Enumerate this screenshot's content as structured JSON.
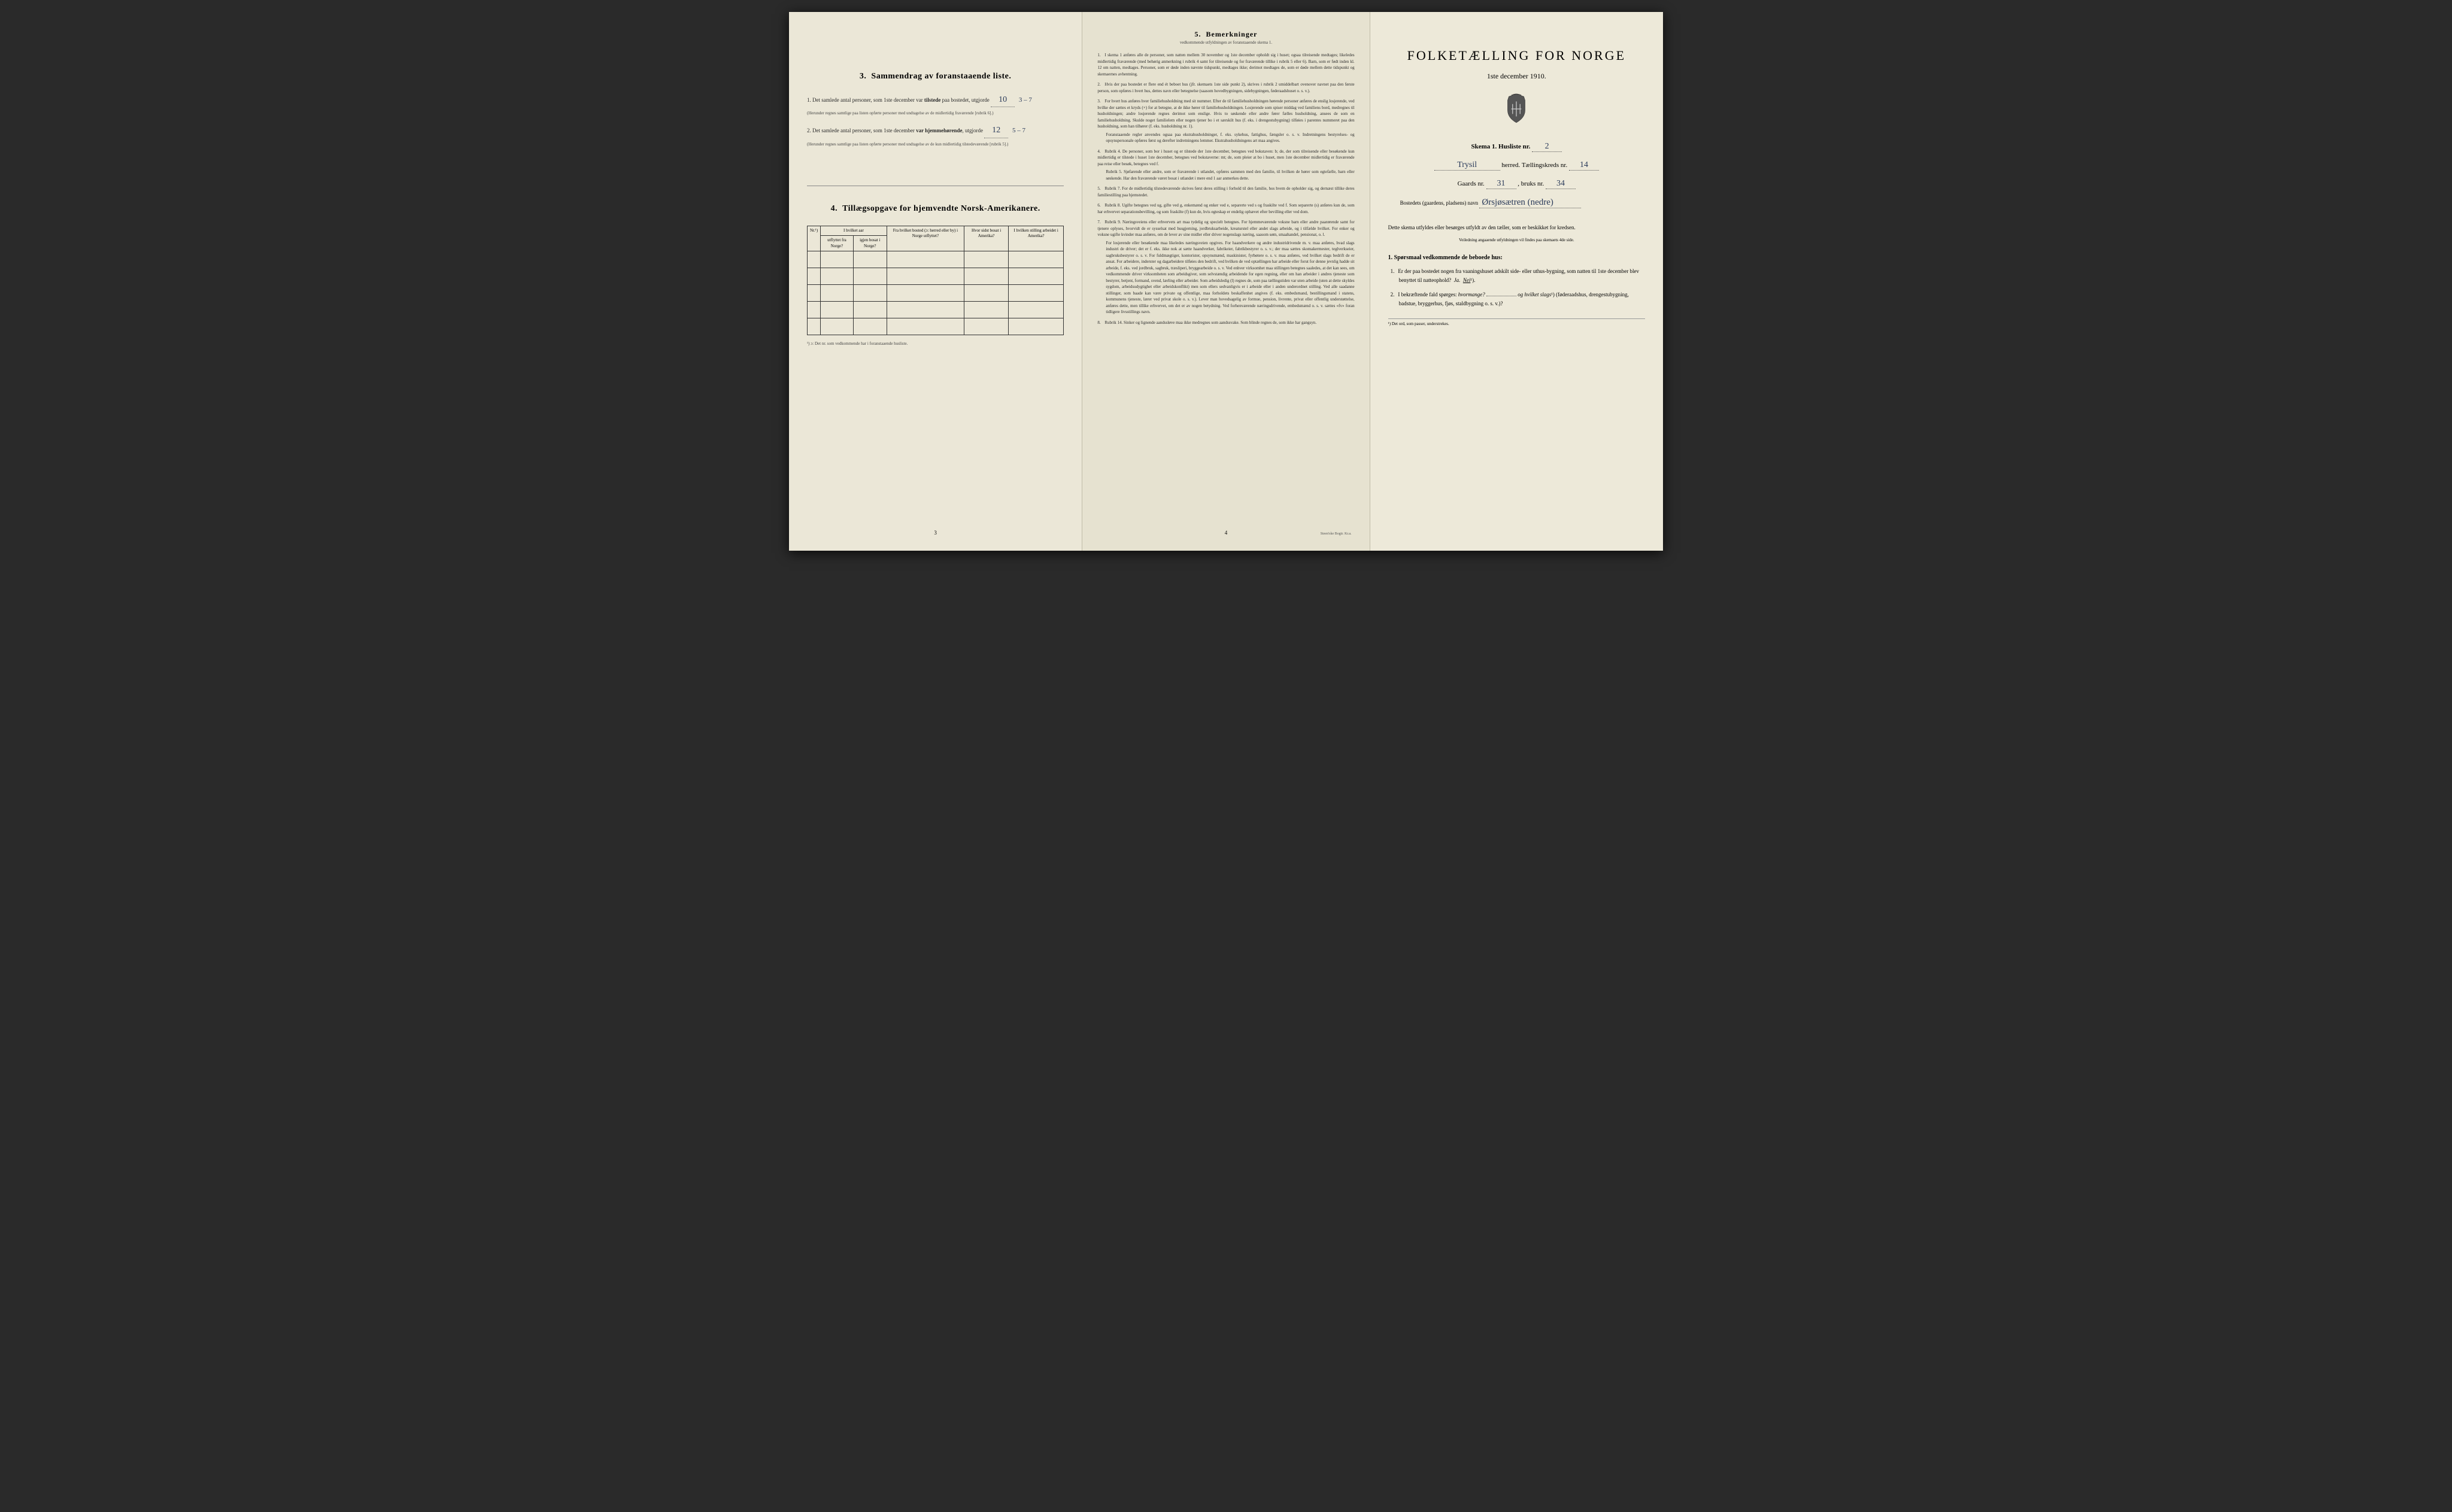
{
  "leftPage": {
    "section3": {
      "heading_num": "3.",
      "heading": "Sammendrag av foranstaaende liste.",
      "item1_prefix": "1. Det samlede antal personer, som 1ste december var",
      "item1_bold": "tilstede",
      "item1_suffix": "paa bostedet, utgjorde",
      "item1_fill": "10",
      "item1_hand": "3 – 7",
      "item1_note": "(Herunder regnes samtlige paa listen opførte personer med undtagelse av de midlertidig fraværende [rubrik 6].)",
      "item2_prefix": "2. Det samlede antal personer, som 1ste december",
      "item2_bold": "var hjemmehørende",
      "item2_suffix": ", utgjorde",
      "item2_fill": "12",
      "item2_hand": "5 – 7",
      "item2_note": "(Herunder regnes samtlige paa listen opførte personer med undtagelse av de kun midlertidig tilstedeværende [rubrik 5].)"
    },
    "section4": {
      "heading_num": "4.",
      "heading": "Tillægsopgave for hjemvendte Norsk-Amerikanere.",
      "col_nr": "Nr.¹)",
      "col_group": "I hvilket aar",
      "col_utflyttet": "utflyttet fra Norge?",
      "col_igjen": "igjen bosat i Norge?",
      "col_bosted": "Fra hvilket bosted (ɔ: herred eller by) i Norge utflyttet?",
      "col_sidst": "Hvor sidst bosat i Amerika?",
      "col_stilling": "I hvilken stilling arbeidet i Amerika?",
      "footnote": "¹) ɔ: Det nr. som vedkommende har i foranstaaende husliste."
    },
    "page_num": "3"
  },
  "centerPage": {
    "heading_num": "5.",
    "heading": "Bemerkninger",
    "subheading": "vedkommende utfyldningen av foranstaaende skema 1.",
    "remarks": [
      {
        "n": "1.",
        "t": "I skema 1 anføres alle de personer, som natten mellem 30 november og 1ste december opholdt sig i huset; ogsaa tilreisende medtages; likeledes midlertidig fraværende (med behørig anmerkning i rubrik 4 samt for tilreisende og for fraværende tillike i rubrik 5 eller 6). Barn, som er født inden kl. 12 om natten, medtages. Personer, som er døde inden nævnte tidspunkt, medtages ikke; derimot medtages de, som er døde mellem dette tidspunkt og skemaernes avhentning."
      },
      {
        "n": "2.",
        "t": "Hvis der paa bostedet er flere end ét beboet hus (jfr. skemaets 1ste side punkt 2), skrives i rubrik 2 umiddelbart ovenover navnet paa den første person, som opføres i hvert hus, dettes navn eller betegnelse (saasom hovedbygningen, sidebygningen, føderaadshuset o. s. v.)."
      },
      {
        "n": "3.",
        "t": "For hvert hus anføres hver familiehusholdning med sit nummer. Efter de til familiehusholdningen hørende personer anføres de enslig losjerende, ved hvilke der sættes et kryds (×) for at betegne, at de ikke hører til familiehusholdningen. Losjerende som spiser middag ved familiens bord, medregnes til husholdningen; andre losjerende regnes derimot som enslige. Hvis to søskende eller andre fører fælles husholdning, ansees de som en familiehusholdning. Skulde noget familielem eller nogen tjener bo i et særskilt hus (f. eks. i drengestubygning) tilføies i parentes nummeret paa den husholdning, som han tilhører (f. eks. husholdning nr. 1).",
        "extra": "Foranstaaende regler anvendes ogsaa paa ekstrahusholdninger, f. eks. sykehus, fattighus, fængsler o. s. v. Indretningens bestyrelses- og opsynspersonale opføres først og derefter indretningens lemmer. Ekstrahusholdningens art maa angives."
      },
      {
        "n": "4.",
        "t": "Rubrik 4. De personer, som bor i huset og er tilstede der 1ste december, betegnes ved bokstaven: b; de, der som tilreisende eller besøkende kun midlertidig er tilstede i huset 1ste december, betegnes ved bokstaverne: mt; de, som pleier at bo i huset, men 1ste december midlertidig er fraværende paa reise eller besøk, betegnes ved f.",
        "extra": "Rubrik 5. Sjøfarende eller andre, som er fraværende i utlandet, opføres sammen med den familie, til hvilken de hører som egtefælle, barn eller søskende. Har den fraværende været bosat i utlandet i mere end 1 aar anmerkes dette."
      },
      {
        "n": "5.",
        "t": "Rubrik 7. For de midlertidig tilstedeværende skrives først deres stilling i forhold til den familie, hos hvem de opholder sig, og dernæst tillike deres familiestilling paa hjemstedet."
      },
      {
        "n": "6.",
        "t": "Rubrik 8. Ugifte betegnes ved ug, gifte ved g, enkemænd og enker ved e, separerte ved s og fraskilte ved f. Som separerte (s) anføres kun de, som har erhvervet separationsbevilling, og som fraskilte (f) kun de, hvis egteskap er endelig ophævet efter bevilling eller ved dom."
      },
      {
        "n": "7.",
        "t": "Rubrik 9. Næringsveiens eller erhvervets art maa tydelig og specielt betegnes. For hjemmeværende voksne barn eller andre paarørende samt for tjenere oplyses, hvorvidt de er sysselsat med husgjerning, jordbruksarbeide, kreaturstel eller andet slags arbeide, og i tilfælde hvilket. For enker og voksne ugifte kvinder maa anføres, om de lever av sine midler eller driver nogenslags næring, saasom søm, smaahandel, pensionat, o. l.",
        "extra": "For losjerende eller besøkende maa likeledes næringsveien opgives. For haandverkere og andre industridrivende m. v. maa anføres, hvad slags industri de driver; det er f. eks. ikke nok at sætte haandverker, fabrikeier, fabrikbestyrer o. s. v.; der maa sættes skomakermester, teglverkseier, sagbruksbestyrer o. s. v. For fuldmægtiger, kontorister, opsynsmænd, maskinister, fyrbøtere o. s. v. maa anføres, ved hvilket slags bedrift de er ansat. For arbeidere, inderster og dagarbeidere tilføies den bedrift, ved hvilken de ved optællingen har arbeide eller forut for denne jevnlig hadde sit arbeide, f. eks. ved jordbruk, sagbruk, træsliperi, bryggearbeide o. s. v. Ved enhver virksomhet maa stillingen betegnes saaledes, at det kan sees, om vedkommende driver virksomheten som arbeidsgiver, som selvstændig arbeidende for egen regning, eller om han arbeider i andres tjeneste som bestyrer, betjent, formand, svend, lærling eller arbeider. Som arbeidsledig (l) regnes de, som paa tællingstiden var uten arbeide (uten at dette skyldes sygdom, arbeidsudygtighet eller arbeidskonflikt) men som ellers sedvanligvis er i arbeide eller i anden underordnet stilling. Ved alle saadanne stillinger, som baade kan være private og offentlige, maa forholdets beskaffenhet angives (f. eks. embedsmand, bestillingsmand i statens, kommunens tjeneste, lærer ved privat skole o. s. v.). Lever man hovedsagelig av formue, pension, livrente, privat eller offentlig understøttelse, anføres dette, men tillike erhvervet, om det er av nogen betydning. Ved forhenværende næringsdrivende, embedsmænd o. s. v. sættes «fv» foran tidligere livsstillings navn."
      },
      {
        "n": "8.",
        "t": "Rubrik 14. Sinker og lignende aandssløve maa ikke medregnes som aandssvake. Som blinde regnes de, som ikke har gangsyn."
      }
    ],
    "page_num": "4",
    "printer": "Steen'ske Bogtr. Kr.a."
  },
  "rightPage": {
    "title": "FOLKETÆLLING FOR NORGE",
    "date": "1ste december 1910.",
    "skema_label": "Skema 1.   Husliste nr.",
    "husliste_nr": "2",
    "herred_fill": "Trysil",
    "herred_label": "herred.   Tællingskreds nr.",
    "kreds_nr": "14",
    "gaards_label": "Gaards nr.",
    "gaards_nr": "31",
    "bruks_label": ", bruks nr.",
    "bruks_nr": "34",
    "bosted_label": "Bostedets (gaardens, pladsens) navn",
    "bosted_fill": "Ørsjøsætren (nedre)",
    "instruction": "Dette skema utfyldes eller besørges utfyldt av den tæller, som er beskikket for kredsen.",
    "instruction_sub": "Veiledning angaaende utfyldningen vil findes paa skemaets 4de side.",
    "q_heading": "1. Spørsmaal vedkommende de beboede hus:",
    "q1": "Er der paa bostedet nogen fra vaaningshuset adskilt side- eller uthus-bygning, som natten til 1ste december blev benyttet til natteophold?",
    "q1_ja": "Ja.",
    "q1_nei": "Nei",
    "q1_sup": "¹).",
    "q2": "I bekræftende fald spørges:",
    "q2_hvor": "hvormange?",
    "q2_og": "og hvilket slags",
    "q2_sup": "¹)",
    "q2_paren": "(føderaadshus, drengestubygning, badstue, bryggerhus, fjøs, staldbygning o. s. v.)?",
    "footnote": "¹) Det ord, som passer, understrekes."
  },
  "colors": {
    "paper": "#e8e4d4",
    "ink": "#2a2a2a",
    "handwriting": "#2a3a5a",
    "border": "#333333"
  }
}
